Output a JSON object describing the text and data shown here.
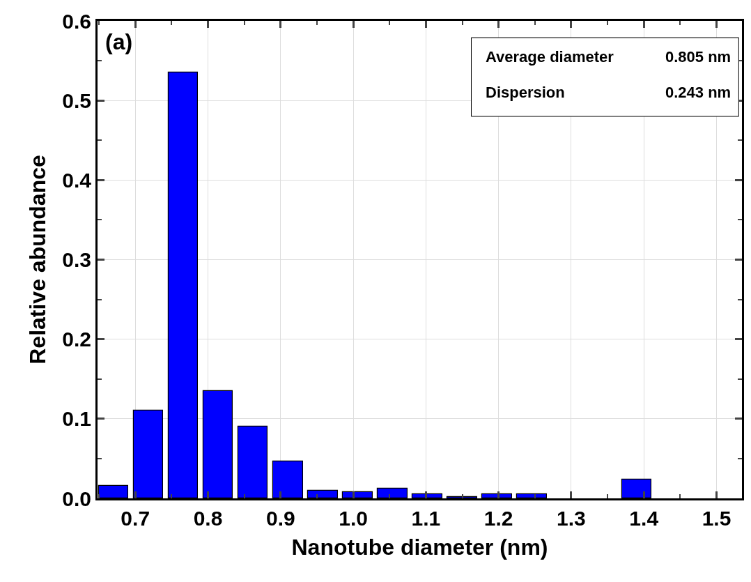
{
  "chart_data": {
    "type": "histogram",
    "xlabel": "Nanotube diameter (nm)",
    "ylabel": "Relative abundance",
    "bins": [
      0.646,
      0.694,
      0.742,
      0.79,
      0.838,
      0.886,
      0.934,
      0.982,
      1.03,
      1.078,
      1.126,
      1.174,
      1.222,
      1.27,
      1.318,
      1.366,
      1.414
    ],
    "values": [
      0.016,
      0.11,
      0.535,
      0.135,
      0.09,
      0.046,
      0.01,
      0.008,
      0.012,
      0.005,
      0.002,
      0.005,
      0.005,
      0,
      0,
      0.024
    ],
    "color": "#0000ff",
    "xlim": [
      0.648,
      1.535
    ],
    "xticks": [
      0.7,
      0.8,
      0.9,
      {
        "value": 1.0,
        "label": "1.0"
      },
      1.1,
      1.2,
      1.3,
      1.4,
      1.5
    ],
    "ylim": [
      0,
      0.6
    ],
    "yticks": [
      {
        "value": 0,
        "label": "0.0"
      },
      0.1,
      0.2,
      0.3,
      0.4,
      0.5,
      0.6
    ],
    "grid": true,
    "annotations": [
      "(a)",
      "Average diameter",
      "0.805 nm",
      "Dispersion",
      "0.243 nm"
    ]
  }
}
